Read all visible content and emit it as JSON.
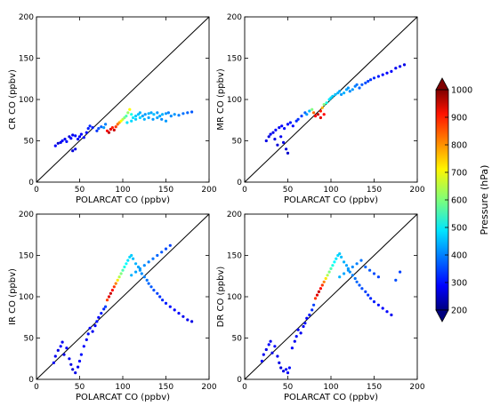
{
  "chart_data": [
    {
      "type": "scatter",
      "panel": "CR",
      "xlabel": "POLARCAT CO (ppbv)",
      "ylabel": "CR CO (ppbv)",
      "xlim": [
        0,
        200
      ],
      "ylim": [
        0,
        200
      ],
      "xticks": [
        "0",
        "50",
        "100",
        "150",
        "200"
      ],
      "yticks": [
        "0",
        "50",
        "100",
        "150",
        "200"
      ],
      "one_to_one_line": true,
      "points": [
        [
          22,
          44,
          300
        ],
        [
          25,
          47,
          260
        ],
        [
          28,
          48,
          280
        ],
        [
          30,
          50,
          300
        ],
        [
          33,
          52,
          290
        ],
        [
          35,
          49,
          310
        ],
        [
          38,
          55,
          270
        ],
        [
          40,
          53,
          300
        ],
        [
          42,
          57,
          290
        ],
        [
          45,
          56,
          310
        ],
        [
          48,
          52,
          300
        ],
        [
          50,
          55,
          290
        ],
        [
          52,
          58,
          300
        ],
        [
          55,
          54,
          310
        ],
        [
          58,
          60,
          300
        ],
        [
          60,
          65,
          320
        ],
        [
          62,
          68,
          330
        ],
        [
          65,
          66,
          320
        ],
        [
          45,
          40,
          280
        ],
        [
          42,
          38,
          270
        ],
        [
          70,
          62,
          340
        ],
        [
          72,
          65,
          360
        ],
        [
          75,
          67,
          380
        ],
        [
          78,
          66,
          420
        ],
        [
          80,
          70,
          400
        ],
        [
          82,
          62,
          900
        ],
        [
          84,
          60,
          950
        ],
        [
          86,
          64,
          920
        ],
        [
          88,
          66,
          880
        ],
        [
          90,
          63,
          940
        ],
        [
          92,
          67,
          860
        ],
        [
          94,
          70,
          820
        ],
        [
          96,
          72,
          780
        ],
        [
          98,
          74,
          700
        ],
        [
          100,
          76,
          650
        ],
        [
          102,
          78,
          600
        ],
        [
          104,
          80,
          560
        ],
        [
          106,
          84,
          620
        ],
        [
          108,
          88,
          700
        ],
        [
          110,
          82,
          520
        ],
        [
          112,
          78,
          480
        ],
        [
          115,
          80,
          460
        ],
        [
          118,
          82,
          450
        ],
        [
          120,
          84,
          440
        ],
        [
          123,
          80,
          430
        ],
        [
          126,
          82,
          420
        ],
        [
          130,
          83,
          440
        ],
        [
          133,
          84,
          430
        ],
        [
          136,
          82,
          450
        ],
        [
          140,
          84,
          420
        ],
        [
          143,
          80,
          430
        ],
        [
          146,
          82,
          440
        ],
        [
          150,
          83,
          420
        ],
        [
          153,
          84,
          400
        ],
        [
          156,
          80,
          410
        ],
        [
          160,
          82,
          420
        ],
        [
          165,
          81,
          400
        ],
        [
          170,
          83,
          390
        ],
        [
          175,
          84,
          380
        ],
        [
          180,
          85,
          370
        ],
        [
          105,
          72,
          480
        ],
        [
          110,
          74,
          470
        ],
        [
          115,
          76,
          460
        ],
        [
          120,
          78,
          470
        ],
        [
          125,
          76,
          440
        ],
        [
          130,
          78,
          430
        ],
        [
          135,
          76,
          420
        ],
        [
          140,
          78,
          430
        ],
        [
          145,
          76,
          410
        ],
        [
          150,
          74,
          420
        ]
      ],
      "colorbar": {
        "label": "Pressure (hPa)",
        "min": 200,
        "max": 1000
      }
    },
    {
      "type": "scatter",
      "panel": "MR",
      "xlabel": "POLARCAT CO (ppbv)",
      "ylabel": "MR CO (ppbv)",
      "xlim": [
        0,
        200
      ],
      "ylim": [
        0,
        200
      ],
      "xticks": [
        "0",
        "50",
        "100",
        "150",
        "200"
      ],
      "yticks": [
        "0",
        "50",
        "100",
        "150",
        "200"
      ],
      "one_to_one_line": true,
      "points": [
        [
          25,
          50,
          280
        ],
        [
          28,
          55,
          270
        ],
        [
          30,
          58,
          290
        ],
        [
          33,
          60,
          280
        ],
        [
          36,
          63,
          300
        ],
        [
          40,
          66,
          290
        ],
        [
          43,
          68,
          300
        ],
        [
          46,
          65,
          310
        ],
        [
          50,
          70,
          300
        ],
        [
          53,
          72,
          320
        ],
        [
          56,
          68,
          300
        ],
        [
          60,
          74,
          330
        ],
        [
          62,
          76,
          340
        ],
        [
          66,
          80,
          350
        ],
        [
          70,
          84,
          380
        ],
        [
          72,
          82,
          420
        ],
        [
          75,
          86,
          450
        ],
        [
          78,
          88,
          600
        ],
        [
          80,
          84,
          820
        ],
        [
          82,
          80,
          900
        ],
        [
          85,
          82,
          940
        ],
        [
          88,
          86,
          880
        ],
        [
          90,
          90,
          760
        ],
        [
          92,
          94,
          600
        ],
        [
          95,
          96,
          520
        ],
        [
          98,
          100,
          480
        ],
        [
          100,
          102,
          470
        ],
        [
          102,
          104,
          460
        ],
        [
          105,
          106,
          450
        ],
        [
          108,
          108,
          440
        ],
        [
          110,
          110,
          430
        ],
        [
          112,
          106,
          420
        ],
        [
          115,
          108,
          440
        ],
        [
          118,
          112,
          430
        ],
        [
          120,
          114,
          420
        ],
        [
          122,
          110,
          410
        ],
        [
          125,
          112,
          420
        ],
        [
          128,
          116,
          400
        ],
        [
          130,
          118,
          390
        ],
        [
          133,
          114,
          380
        ],
        [
          136,
          118,
          370
        ],
        [
          140,
          120,
          360
        ],
        [
          143,
          122,
          350
        ],
        [
          146,
          124,
          340
        ],
        [
          150,
          126,
          330
        ],
        [
          155,
          128,
          320
        ],
        [
          160,
          130,
          310
        ],
        [
          165,
          132,
          300
        ],
        [
          170,
          134,
          300
        ],
        [
          175,
          138,
          290
        ],
        [
          180,
          140,
          290
        ],
        [
          185,
          142,
          280
        ],
        [
          45,
          48,
          280
        ],
        [
          48,
          40,
          270
        ],
        [
          50,
          35,
          260
        ],
        [
          42,
          55,
          290
        ],
        [
          38,
          45,
          270
        ],
        [
          35,
          52,
          280
        ],
        [
          88,
          78,
          920
        ],
        [
          92,
          82,
          900
        ]
      ],
      "colorbar": {
        "label": "Pressure (hPa)",
        "min": 200,
        "max": 1000
      }
    },
    {
      "type": "scatter",
      "panel": "IR",
      "xlabel": "POLARCAT CO (ppbv)",
      "ylabel": "IR CO (ppbv)",
      "xlim": [
        0,
        200
      ],
      "ylim": [
        0,
        200
      ],
      "xticks": [
        "0",
        "50",
        "100",
        "150",
        "200"
      ],
      "yticks": [
        "0",
        "50",
        "100",
        "150",
        "200"
      ],
      "one_to_one_line": true,
      "points": [
        [
          20,
          20,
          300
        ],
        [
          22,
          28,
          290
        ],
        [
          25,
          35,
          280
        ],
        [
          28,
          40,
          300
        ],
        [
          30,
          45,
          290
        ],
        [
          32,
          30,
          280
        ],
        [
          35,
          38,
          300
        ],
        [
          38,
          25,
          290
        ],
        [
          40,
          18,
          280
        ],
        [
          42,
          12,
          270
        ],
        [
          45,
          8,
          280
        ],
        [
          48,
          15,
          290
        ],
        [
          50,
          22,
          300
        ],
        [
          52,
          30,
          310
        ],
        [
          55,
          40,
          300
        ],
        [
          58,
          48,
          290
        ],
        [
          60,
          55,
          310
        ],
        [
          62,
          62,
          300
        ],
        [
          65,
          58,
          290
        ],
        [
          68,
          65,
          300
        ],
        [
          70,
          70,
          310
        ],
        [
          72,
          75,
          300
        ],
        [
          75,
          80,
          320
        ],
        [
          78,
          85,
          330
        ],
        [
          80,
          88,
          350
        ],
        [
          82,
          96,
          850
        ],
        [
          84,
          100,
          920
        ],
        [
          86,
          104,
          940
        ],
        [
          88,
          108,
          900
        ],
        [
          90,
          112,
          860
        ],
        [
          92,
          116,
          800
        ],
        [
          94,
          120,
          720
        ],
        [
          96,
          124,
          640
        ],
        [
          98,
          128,
          600
        ],
        [
          100,
          132,
          560
        ],
        [
          102,
          136,
          520
        ],
        [
          104,
          140,
          500
        ],
        [
          106,
          144,
          480
        ],
        [
          108,
          148,
          470
        ],
        [
          110,
          150,
          460
        ],
        [
          112,
          146,
          450
        ],
        [
          115,
          140,
          440
        ],
        [
          118,
          136,
          430
        ],
        [
          120,
          132,
          420
        ],
        [
          122,
          128,
          410
        ],
        [
          125,
          124,
          400
        ],
        [
          128,
          120,
          390
        ],
        [
          130,
          116,
          380
        ],
        [
          133,
          112,
          370
        ],
        [
          136,
          108,
          360
        ],
        [
          140,
          104,
          350
        ],
        [
          143,
          100,
          340
        ],
        [
          146,
          96,
          330
        ],
        [
          150,
          92,
          320
        ],
        [
          155,
          88,
          310
        ],
        [
          160,
          84,
          300
        ],
        [
          165,
          80,
          300
        ],
        [
          170,
          76,
          290
        ],
        [
          175,
          72,
          290
        ],
        [
          180,
          70,
          280
        ],
        [
          110,
          126,
          440
        ],
        [
          115,
          130,
          430
        ],
        [
          120,
          134,
          420
        ],
        [
          125,
          138,
          410
        ],
        [
          130,
          142,
          400
        ],
        [
          135,
          146,
          390
        ],
        [
          140,
          150,
          380
        ],
        [
          145,
          154,
          370
        ],
        [
          150,
          158,
          360
        ],
        [
          155,
          162,
          350
        ]
      ],
      "colorbar": {
        "label": "Pressure (hPa)",
        "min": 200,
        "max": 1000
      }
    },
    {
      "type": "scatter",
      "panel": "DR",
      "xlabel": "POLARCAT CO (ppbv)",
      "ylabel": "DR CO (ppbv)",
      "xlim": [
        0,
        200
      ],
      "ylim": [
        0,
        200
      ],
      "xticks": [
        "0",
        "50",
        "100",
        "150",
        "200"
      ],
      "yticks": [
        "0",
        "50",
        "100",
        "150",
        "200"
      ],
      "one_to_one_line": true,
      "points": [
        [
          20,
          22,
          300
        ],
        [
          22,
          30,
          290
        ],
        [
          25,
          36,
          280
        ],
        [
          28,
          42,
          300
        ],
        [
          30,
          46,
          290
        ],
        [
          32,
          32,
          280
        ],
        [
          35,
          40,
          300
        ],
        [
          38,
          28,
          290
        ],
        [
          40,
          20,
          280
        ],
        [
          42,
          14,
          270
        ],
        [
          45,
          10,
          280
        ],
        [
          48,
          12,
          290
        ],
        [
          50,
          8,
          300
        ],
        [
          52,
          14,
          310
        ],
        [
          55,
          38,
          300
        ],
        [
          58,
          46,
          290
        ],
        [
          60,
          52,
          310
        ],
        [
          62,
          60,
          300
        ],
        [
          65,
          56,
          290
        ],
        [
          68,
          64,
          300
        ],
        [
          70,
          68,
          310
        ],
        [
          72,
          74,
          300
        ],
        [
          75,
          78,
          320
        ],
        [
          78,
          84,
          330
        ],
        [
          80,
          90,
          350
        ],
        [
          82,
          98,
          860
        ],
        [
          84,
          102,
          920
        ],
        [
          86,
          106,
          940
        ],
        [
          88,
          110,
          900
        ],
        [
          90,
          114,
          860
        ],
        [
          92,
          118,
          800
        ],
        [
          94,
          122,
          720
        ],
        [
          96,
          126,
          640
        ],
        [
          98,
          130,
          600
        ],
        [
          100,
          134,
          560
        ],
        [
          102,
          138,
          520
        ],
        [
          104,
          142,
          500
        ],
        [
          106,
          146,
          480
        ],
        [
          108,
          150,
          470
        ],
        [
          110,
          152,
          460
        ],
        [
          112,
          148,
          450
        ],
        [
          115,
          142,
          440
        ],
        [
          118,
          138,
          430
        ],
        [
          120,
          134,
          420
        ],
        [
          122,
          130,
          410
        ],
        [
          125,
          126,
          400
        ],
        [
          128,
          122,
          390
        ],
        [
          130,
          118,
          380
        ],
        [
          133,
          114,
          370
        ],
        [
          136,
          110,
          360
        ],
        [
          140,
          106,
          350
        ],
        [
          143,
          102,
          340
        ],
        [
          146,
          98,
          330
        ],
        [
          150,
          94,
          320
        ],
        [
          155,
          90,
          310
        ],
        [
          160,
          86,
          300
        ],
        [
          165,
          82,
          300
        ],
        [
          170,
          78,
          290
        ],
        [
          175,
          120,
          360
        ],
        [
          180,
          130,
          350
        ],
        [
          110,
          124,
          440
        ],
        [
          115,
          128,
          430
        ],
        [
          120,
          132,
          420
        ],
        [
          125,
          136,
          410
        ],
        [
          130,
          140,
          400
        ],
        [
          135,
          144,
          390
        ],
        [
          140,
          136,
          380
        ],
        [
          145,
          132,
          370
        ],
        [
          150,
          128,
          360
        ],
        [
          155,
          124,
          350
        ]
      ],
      "colorbar": {
        "label": "Pressure (hPa)",
        "min": 200,
        "max": 1000
      }
    }
  ],
  "colorbar": {
    "label": "Pressure (hPa)",
    "ticks": [
      "1000",
      "900",
      "800",
      "700",
      "600",
      "500",
      "400",
      "300",
      "200"
    ],
    "colormap": "jet",
    "extend": "both"
  }
}
